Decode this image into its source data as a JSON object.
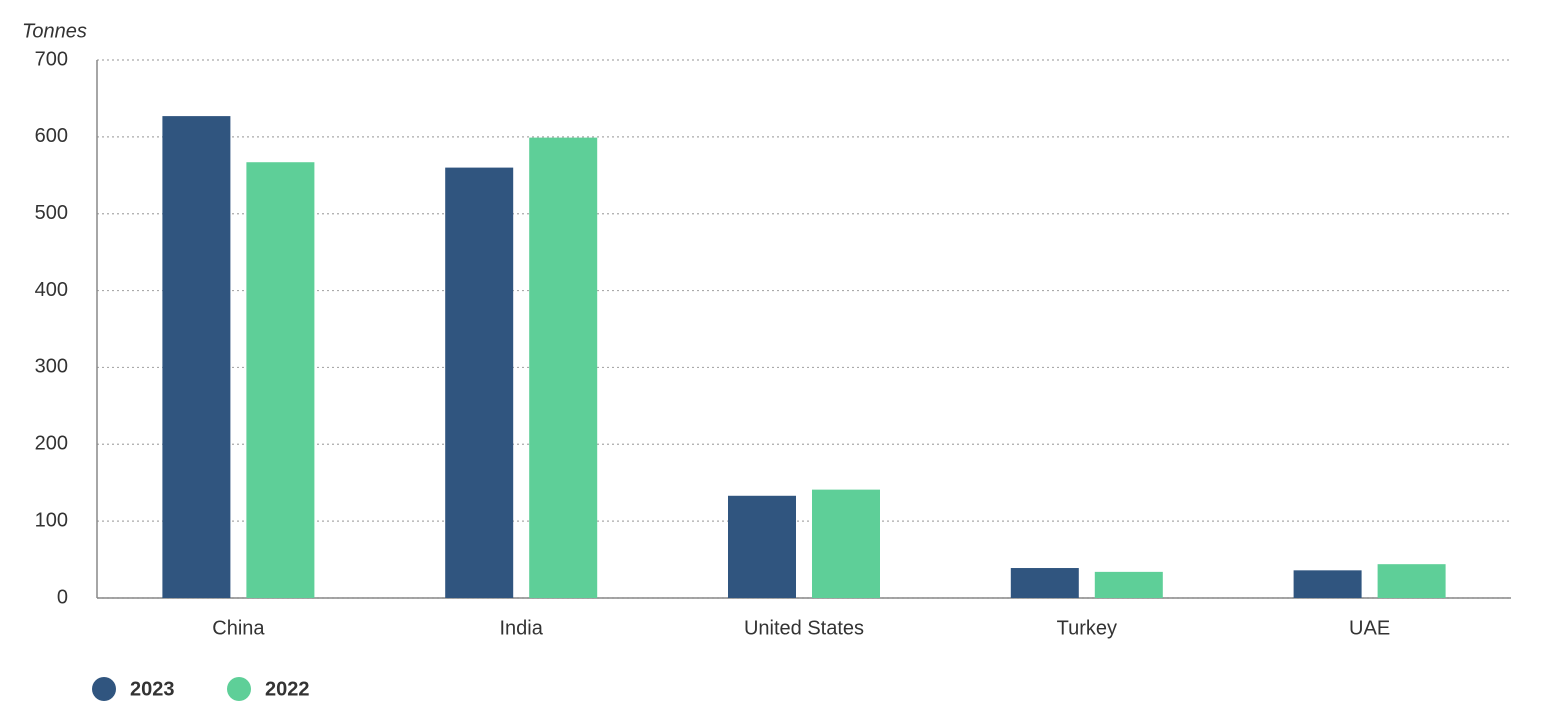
{
  "chart_data": {
    "type": "bar",
    "y_label": "Tonnes",
    "categories": [
      "China",
      "India",
      "United States",
      "Turkey",
      "UAE"
    ],
    "series": [
      {
        "name": "2023",
        "color": "#30557f",
        "values": [
          627,
          560,
          133,
          39,
          36
        ]
      },
      {
        "name": "2022",
        "color": "#5ecf98",
        "values": [
          567,
          599,
          141,
          34,
          44
        ]
      }
    ],
    "ylim": [
      0,
      700
    ],
    "yticks": [
      0,
      100,
      200,
      300,
      400,
      500,
      600,
      700
    ],
    "grid": true,
    "legend": "bottom-left"
  }
}
